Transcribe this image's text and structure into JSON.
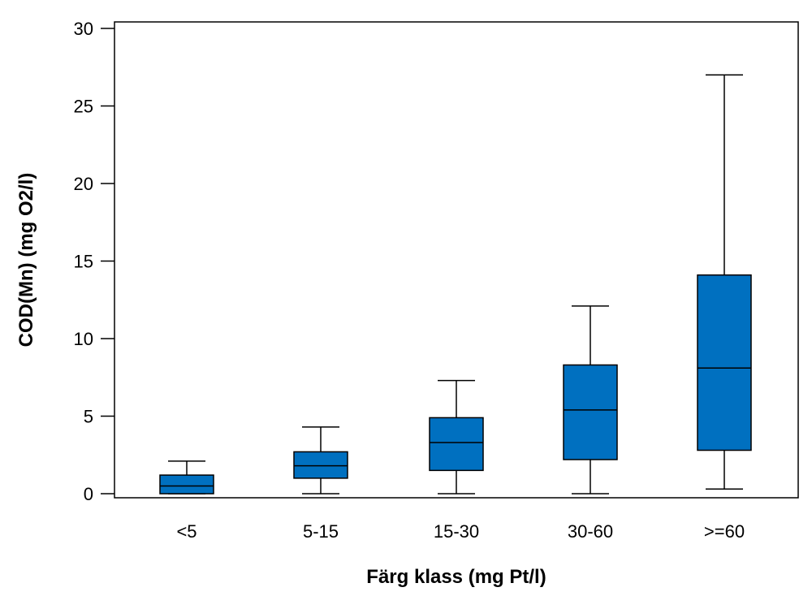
{
  "chart_data": {
    "type": "boxplot",
    "title": "",
    "xlabel": "Färg klass (mg Pt/l)",
    "ylabel": "COD(Mn) (mg O2/l)",
    "ylim": [
      0,
      30
    ],
    "yticks": [
      0,
      5,
      10,
      15,
      20,
      25,
      30
    ],
    "grid": false,
    "legend": "none",
    "box_color": "#0070c0",
    "categories": [
      "<5",
      "5-15",
      "15-30",
      "30-60",
      ">=60"
    ],
    "boxes": [
      {
        "category": "<5",
        "min": 0,
        "q1": 0,
        "median": 0.5,
        "q3": 1.2,
        "max": 2.1
      },
      {
        "category": "5-15",
        "min": 0,
        "q1": 1.0,
        "median": 1.8,
        "q3": 2.7,
        "max": 4.3
      },
      {
        "category": "15-30",
        "min": 0,
        "q1": 1.5,
        "median": 3.3,
        "q3": 4.9,
        "max": 7.3
      },
      {
        "category": "30-60",
        "min": 0,
        "q1": 2.2,
        "median": 5.4,
        "q3": 8.3,
        "max": 12.1
      },
      {
        "category": ">=60",
        "min": 0.3,
        "q1": 2.8,
        "median": 8.1,
        "q3": 14.1,
        "max": 27.0
      }
    ]
  }
}
